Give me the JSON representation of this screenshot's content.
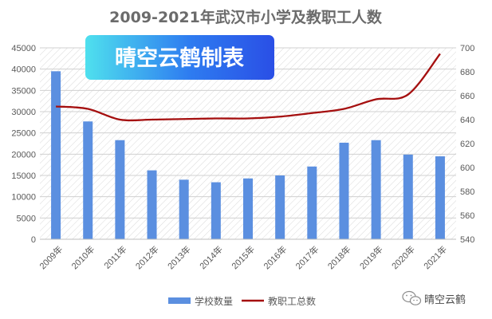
{
  "chart_data": {
    "type": "bar",
    "title": "2009-2021年武汉市小学及教职工人数",
    "categories": [
      "2009年",
      "2010年",
      "2011年",
      "2012年",
      "2013年",
      "2014年",
      "2015年",
      "2016年",
      "2017年",
      "2018年",
      "2019年",
      "2020年",
      "2021年"
    ],
    "series": [
      {
        "name": "学校数量",
        "type": "bar",
        "axis": "left",
        "color": "#5B8FE0",
        "values": [
          39500,
          27700,
          23300,
          16200,
          14000,
          13400,
          14300,
          15000,
          17100,
          22700,
          23300,
          19900,
          19500
        ]
      },
      {
        "name": "教职工总数",
        "type": "line",
        "axis": "right",
        "color": "#A50F0F",
        "values": [
          651,
          649,
          640,
          640,
          640.5,
          641,
          641,
          642.5,
          645.5,
          649,
          657,
          661,
          695
        ]
      }
    ],
    "y_left": {
      "min": 0,
      "max": 45000,
      "ticks": [
        0,
        5000,
        10000,
        15000,
        20000,
        25000,
        30000,
        35000,
        40000,
        45000
      ]
    },
    "y_right": {
      "min": 540,
      "max": 700,
      "ticks": [
        540,
        560,
        580,
        600,
        620,
        640,
        660,
        680,
        700
      ]
    },
    "grid": true,
    "background_pattern": "diagonal-hatch",
    "legend_position": "bottom"
  },
  "badge": {
    "text": "晴空云鹤制表"
  },
  "watermark": {
    "text": "晴空云鹤",
    "icon": "wechat-icon"
  }
}
